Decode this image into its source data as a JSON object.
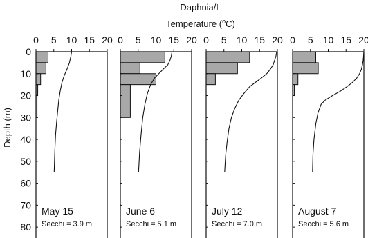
{
  "chart_data": {
    "type": "bar+line",
    "title_top": "Daphnia/L",
    "temperature_label": "Temperature (",
    "temperature_unit_superscript": "o",
    "temperature_label_end": "C)",
    "ylabel": "Depth (m)",
    "x_ticks": [
      "0",
      "5",
      "10",
      "15",
      "20"
    ],
    "y_ticks": [
      "0",
      "10",
      "20",
      "30",
      "40",
      "50",
      "60",
      "70",
      "80"
    ],
    "xlim": [
      0,
      20
    ],
    "ylim": [
      0,
      85
    ],
    "bar_color": "#a8a8a8",
    "panels": [
      {
        "date": "May 15",
        "secchi": "Secchi = 3.9 m",
        "daphnia_bins": [
          {
            "depth_top": 0,
            "depth_bottom": 5,
            "value": 3.4
          },
          {
            "depth_top": 5,
            "depth_bottom": 10,
            "value": 2.8
          },
          {
            "depth_top": 10,
            "depth_bottom": 15,
            "value": 1.3
          },
          {
            "depth_top": 15,
            "depth_bottom": 20,
            "value": 0.5
          },
          {
            "depth_top": 20,
            "depth_bottom": 30,
            "value": 0.3
          }
        ],
        "temperature_profile": [
          [
            10.0,
            0
          ],
          [
            9.8,
            2
          ],
          [
            9.4,
            5
          ],
          [
            8.7,
            8
          ],
          [
            7.9,
            11
          ],
          [
            7.3,
            14
          ],
          [
            6.8,
            18
          ],
          [
            6.4,
            22
          ],
          [
            6.1,
            27
          ],
          [
            5.8,
            32
          ],
          [
            5.5,
            38
          ],
          [
            5.3,
            45
          ],
          [
            5.2,
            50
          ],
          [
            5.1,
            55
          ]
        ]
      },
      {
        "date": "June 6",
        "secchi": "Secchi = 5.1 m",
        "daphnia_bins": [
          {
            "depth_top": 0,
            "depth_bottom": 5,
            "value": 12.5
          },
          {
            "depth_top": 5,
            "depth_bottom": 10,
            "value": 5.5
          },
          {
            "depth_top": 10,
            "depth_bottom": 15,
            "value": 10.0
          },
          {
            "depth_top": 15,
            "depth_bottom": 30,
            "value": 2.8
          }
        ],
        "temperature_profile": [
          [
            14.5,
            0
          ],
          [
            14.3,
            2
          ],
          [
            13.9,
            4
          ],
          [
            13.3,
            6
          ],
          [
            12.0,
            8
          ],
          [
            10.8,
            10
          ],
          [
            9.6,
            12
          ],
          [
            8.5,
            15
          ],
          [
            7.6,
            19
          ],
          [
            6.9,
            24
          ],
          [
            6.3,
            30
          ],
          [
            5.8,
            38
          ],
          [
            5.4,
            46
          ],
          [
            5.2,
            52
          ],
          [
            5.1,
            55
          ]
        ]
      },
      {
        "date": "July 12",
        "secchi": "Secchi = 7.0 m",
        "daphnia_bins": [
          {
            "depth_top": 0,
            "depth_bottom": 5,
            "value": 12.2
          },
          {
            "depth_top": 5,
            "depth_bottom": 10,
            "value": 8.8
          },
          {
            "depth_top": 10,
            "depth_bottom": 15,
            "value": 2.6
          }
        ],
        "temperature_profile": [
          [
            19.8,
            0
          ],
          [
            19.6,
            2
          ],
          [
            19.2,
            4
          ],
          [
            18.8,
            6
          ],
          [
            18.0,
            8
          ],
          [
            17.0,
            10
          ],
          [
            15.5,
            12
          ],
          [
            13.8,
            14
          ],
          [
            12.2,
            16
          ],
          [
            10.6,
            19
          ],
          [
            9.2,
            22
          ],
          [
            8.0,
            26
          ],
          [
            7.1,
            30
          ],
          [
            6.4,
            35
          ],
          [
            5.9,
            41
          ],
          [
            5.5,
            47
          ],
          [
            5.3,
            52
          ],
          [
            5.2,
            55
          ]
        ]
      },
      {
        "date": "August 7",
        "secchi": "Secchi = 5.6 m",
        "daphnia_bins": [
          {
            "depth_top": 0,
            "depth_bottom": 5,
            "value": 6.5
          },
          {
            "depth_top": 5,
            "depth_bottom": 10,
            "value": 7.2
          },
          {
            "depth_top": 10,
            "depth_bottom": 15,
            "value": 1.5
          },
          {
            "depth_top": 15,
            "depth_bottom": 20,
            "value": 0.5
          }
        ],
        "temperature_profile": [
          [
            20.0,
            0
          ],
          [
            19.9,
            2
          ],
          [
            19.8,
            4
          ],
          [
            19.6,
            6
          ],
          [
            19.3,
            8
          ],
          [
            18.8,
            10
          ],
          [
            18.0,
            12
          ],
          [
            16.8,
            14
          ],
          [
            15.2,
            16
          ],
          [
            13.4,
            18
          ],
          [
            11.2,
            20
          ],
          [
            9.2,
            22
          ],
          [
            8.0,
            24
          ],
          [
            7.1,
            28
          ],
          [
            6.5,
            33
          ],
          [
            6.0,
            40
          ],
          [
            5.7,
            47
          ],
          [
            5.6,
            55
          ]
        ]
      }
    ]
  }
}
